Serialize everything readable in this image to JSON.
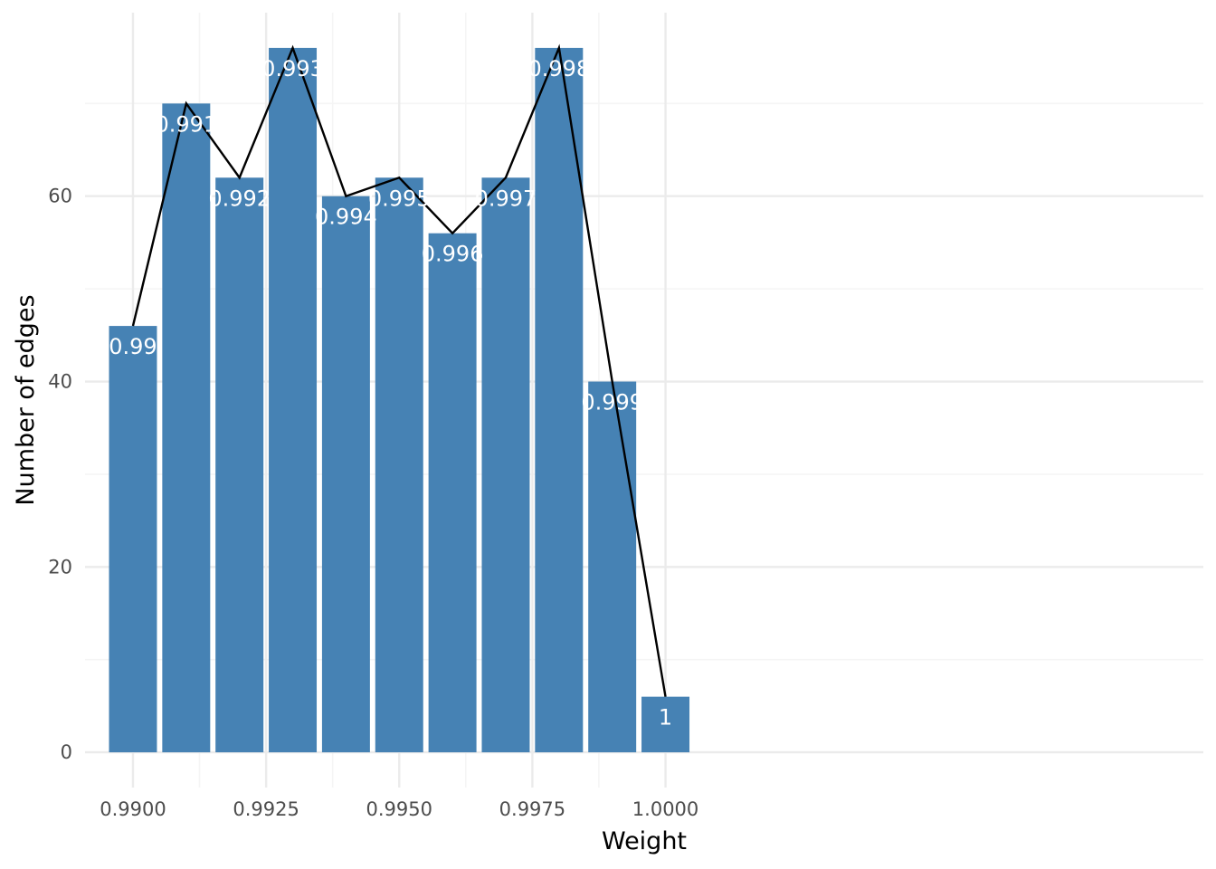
{
  "chart_data": {
    "type": "bar",
    "xlabel": "Weight",
    "ylabel": "Number of edges",
    "x": [
      0.99,
      0.991,
      0.992,
      0.993,
      0.994,
      0.995,
      0.996,
      0.997,
      0.998,
      0.999,
      1.0
    ],
    "values": [
      46,
      70,
      62,
      76,
      60,
      62,
      56,
      62,
      76,
      40,
      6
    ],
    "bar_labels": [
      "0.99",
      "0.991",
      "0.992",
      "0.993",
      "0.994",
      "0.995",
      "0.996",
      "0.997",
      "0.998",
      "0.999",
      "1"
    ],
    "overlay_line": true,
    "xlim": [
      0.9891,
      1.0101
    ],
    "ylim": [
      -3.8,
      79.8
    ],
    "x_ticks": [
      0.99,
      0.9925,
      0.995,
      0.9975,
      1.0
    ],
    "x_tick_labels": [
      "0.9900",
      "0.9925",
      "0.9950",
      "0.9975",
      "1.0000"
    ],
    "y_ticks": [
      0,
      20,
      40,
      60
    ],
    "y_tick_labels": [
      "0",
      "20",
      "40",
      "60"
    ],
    "grid": true,
    "colors": {
      "bar": "#4682b4",
      "line": "#000000",
      "grid_major": "#ebebeb",
      "grid_minor": "#f5f5f5"
    }
  }
}
